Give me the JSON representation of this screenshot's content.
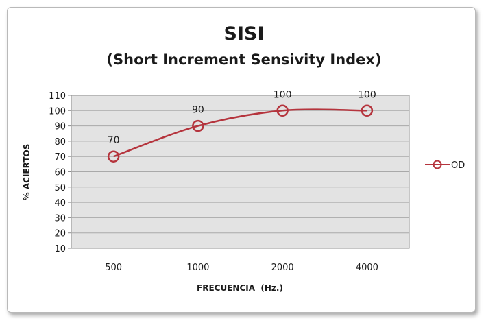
{
  "chart_data": {
    "type": "line",
    "title": "SISI",
    "subtitle": "(Short Increment Sensivity Index)",
    "xlabel": "FRECUENCIA  (Hz.)",
    "ylabel": "% ACIERTOS",
    "categories": [
      "500",
      "1000",
      "2000",
      "4000"
    ],
    "series": [
      {
        "name": "OD",
        "values": [
          70,
          90,
          100,
          100
        ],
        "color": "#b5343d"
      }
    ],
    "data_labels": [
      "70",
      "90",
      "100",
      "100"
    ],
    "ylim": [
      10,
      110
    ],
    "yticks": [
      10,
      20,
      30,
      40,
      50,
      60,
      70,
      80,
      90,
      100,
      110
    ],
    "grid": true,
    "plot_background": "#e3e3e3",
    "legend": "right",
    "marker": "open-circle"
  }
}
